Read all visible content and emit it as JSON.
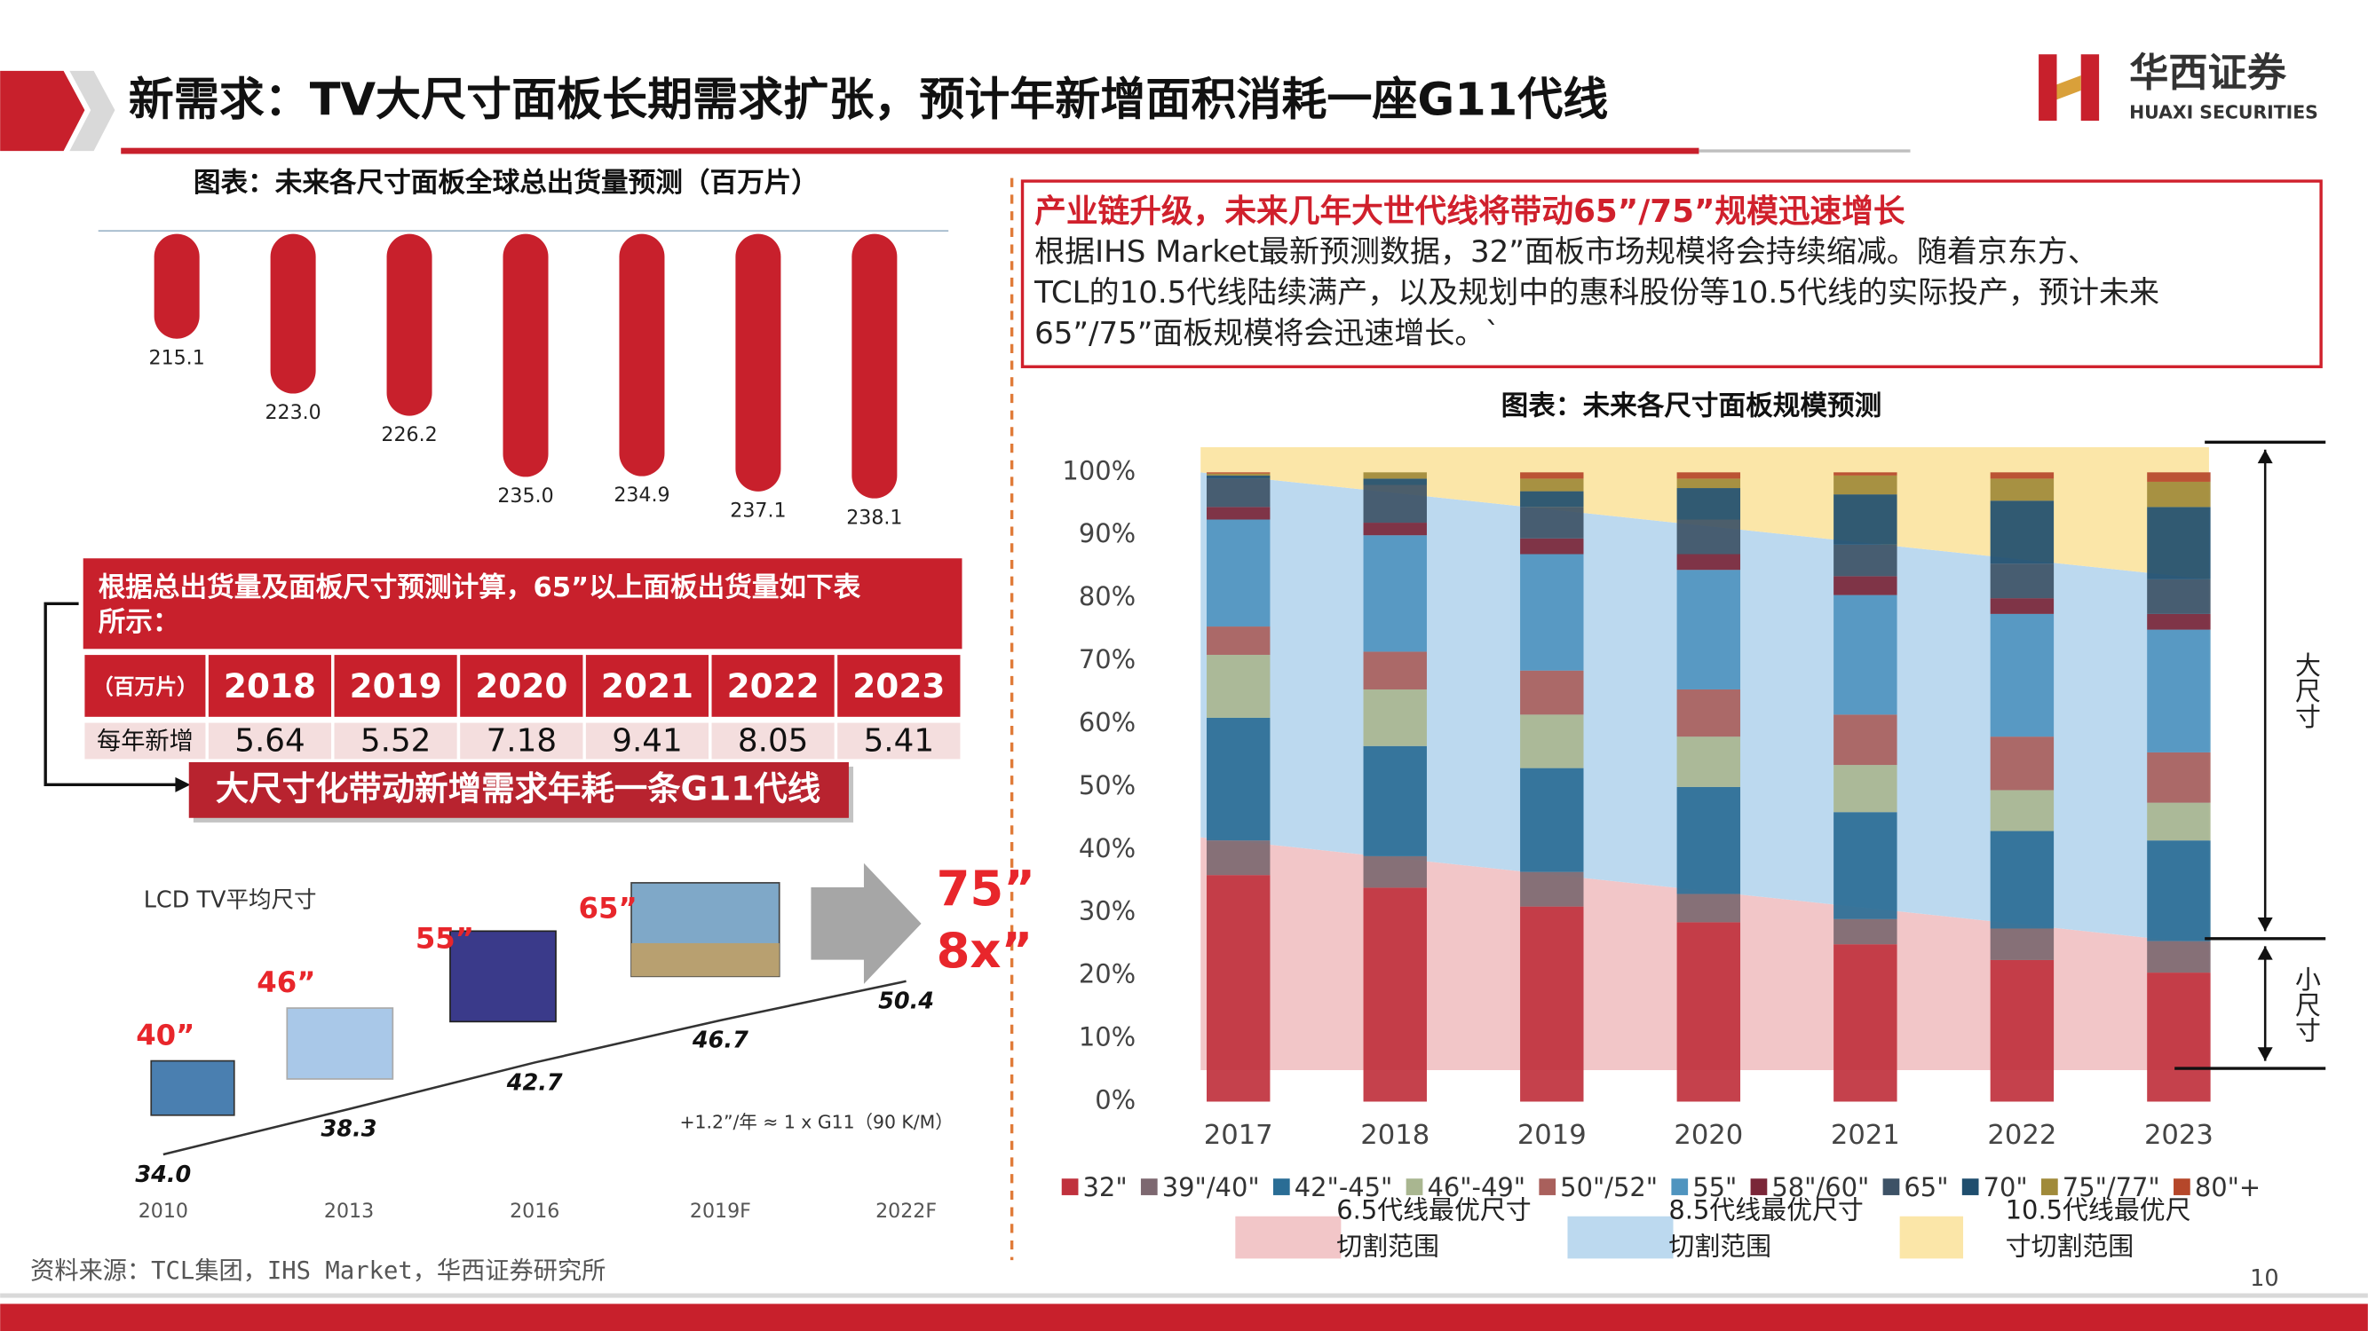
{
  "header": {
    "title": "新需求：TV大尺寸面板长期需求扩张，预计年新增面积消耗一座G11代线"
  },
  "logo": {
    "name_cn": "华西证券",
    "name_en": "HUAXI SECURITIES"
  },
  "table": {
    "title": [
      "根据总出货量及面板尺寸预测计算，65”以上面板出货量如下表",
      "所示："
    ],
    "header": [
      "（百万片）",
      "2018",
      "2019",
      "2020",
      "2021",
      "2022",
      "2023"
    ],
    "rows": [
      [
        "每年新增",
        "5.64",
        "5.52",
        "7.18",
        "9.41",
        "8.05",
        "5.41"
      ]
    ],
    "conclusion": "大尺寸化带动新增需求年耗一条G11代线"
  },
  "tv_illustration": {
    "sizes": [
      "40”",
      "46”",
      "55”",
      "65”"
    ],
    "target": "75”",
    "multiple": "8x”"
  },
  "text_box": {
    "heading": "产业链升级，未来几年大世代线将带动65”/75”规模迅速增长",
    "body": [
      "根据IHS  Market最新预测数据，32”面板市场规模将会持续缩减。随着京东方、",
      "TCL的10.5代线陆续满产，以及规划中的惠科股份等10.5代线的实际投产，预计未来",
      "65”/75”面板规模将会迅速增长。`"
    ]
  },
  "source": "资料来源：TCL集团，IHS Market，华西证券研究所",
  "page_number": "10",
  "chart_data": [
    {
      "type": "bar",
      "title": "图表：未来各尺寸面板全球总出货量预测（百万片）",
      "values": [
        215.1,
        223.0,
        226.2,
        235.0,
        234.9,
        237.1,
        238.1
      ],
      "value_labels": [
        "215.1",
        "223.0",
        "226.2",
        "235.0",
        "234.9",
        "237.1",
        "238.1"
      ],
      "color": "#c8202c",
      "ylim": [
        200,
        240
      ]
    },
    {
      "type": "line",
      "title": "LCD TV平均尺寸",
      "categories": [
        "2010",
        "2013",
        "2016",
        "2019F",
        "2022F"
      ],
      "values": [
        34.0,
        38.3,
        42.7,
        46.7,
        50.4
      ],
      "value_labels": [
        "34.0",
        "38.3",
        "42.7",
        "46.7",
        "50.4"
      ],
      "ylim": [
        30,
        55
      ],
      "color": "#333333",
      "annotation": "+1.2”/年 ≈ 1 x G11（90 K/M）"
    },
    {
      "type": "stacked_bar",
      "title": "图表：未来各尺寸面板规模预测",
      "categories": [
        "2017",
        "2018",
        "2019",
        "2020",
        "2021",
        "2022",
        "2023"
      ],
      "ylim": [
        0,
        100
      ],
      "yticks": [
        {
          "value": 0,
          "label": "0%"
        },
        {
          "value": 10,
          "label": "10%"
        },
        {
          "value": 20,
          "label": "20%"
        },
        {
          "value": 30,
          "label": "30%"
        },
        {
          "value": 40,
          "label": "40%"
        },
        {
          "value": 50,
          "label": "50%"
        },
        {
          "value": 60,
          "label": "60%"
        },
        {
          "value": 70,
          "label": "70%"
        },
        {
          "value": 80,
          "label": "80%"
        },
        {
          "value": 90,
          "label": "90%"
        },
        {
          "value": 100,
          "label": "100%"
        }
      ],
      "legend": "bottom",
      "series": [
        {
          "name": "32\"",
          "color": "#c0313d",
          "values": [
            36,
            34,
            31,
            28.5,
            25,
            22.5,
            20.5
          ]
        },
        {
          "name": "39\"/40\"",
          "color": "#7d6870",
          "values": [
            5.5,
            5,
            5.5,
            4.5,
            4,
            5,
            5
          ]
        },
        {
          "name": "42\"-45\"",
          "color": "#2a6d95",
          "values": [
            19.5,
            17.5,
            16.5,
            17,
            17,
            15.5,
            16
          ]
        },
        {
          "name": "46\"-49\"",
          "color": "#a9b690",
          "values": [
            10,
            9,
            8.5,
            8,
            7.5,
            6.5,
            6
          ]
        },
        {
          "name": "50\"/52\"",
          "color": "#a9605c",
          "values": [
            4.5,
            6,
            7,
            7.5,
            8,
            8.5,
            8
          ]
        },
        {
          "name": "55\"",
          "color": "#4f94bf",
          "values": [
            17,
            18.5,
            18.5,
            19,
            19,
            19.5,
            19.5
          ]
        },
        {
          "name": "58\"/60\"",
          "color": "#7a2638",
          "values": [
            2,
            2,
            2.5,
            2.5,
            3,
            2.5,
            2.5
          ]
        },
        {
          "name": "65\"",
          "color": "#3d5266",
          "values": [
            4.5,
            6,
            5,
            5.5,
            5,
            5.5,
            5.5
          ]
        },
        {
          "name": "70\"",
          "color": "#1f4e6e",
          "values": [
            0.5,
            1,
            2.5,
            5,
            8,
            10,
            11.5
          ]
        },
        {
          "name": "75\"/77\"",
          "color": "#a08a3a",
          "values": [
            0.3,
            1,
            2,
            1.5,
            3,
            3.5,
            4
          ]
        },
        {
          "name": "80\"+",
          "color": "#b5472a",
          "values": [
            0.2,
            0,
            1,
            1,
            0.5,
            1,
            1.5
          ]
        }
      ],
      "areas": [
        {
          "name": [
            "6.5代线最优尺寸",
            "切割范围"
          ],
          "color": "#f2c6c8",
          "lower": [
            5,
            5
          ],
          "upper": [
            42,
            25
          ]
        },
        {
          "name": [
            "8.5代线最优尺寸",
            "切割范围"
          ],
          "color": "#bcd9ef",
          "lower": [
            42,
            25
          ],
          "upper": [
            100,
            83
          ]
        },
        {
          "name": [
            "10.5代线最优尺",
            "寸切割范围"
          ],
          "color": "#fbe6a8",
          "lower": [
            100,
            83
          ],
          "upper": [
            104,
            104
          ]
        }
      ],
      "annotations": [
        "大尺寸",
        "小尺寸"
      ]
    }
  ]
}
